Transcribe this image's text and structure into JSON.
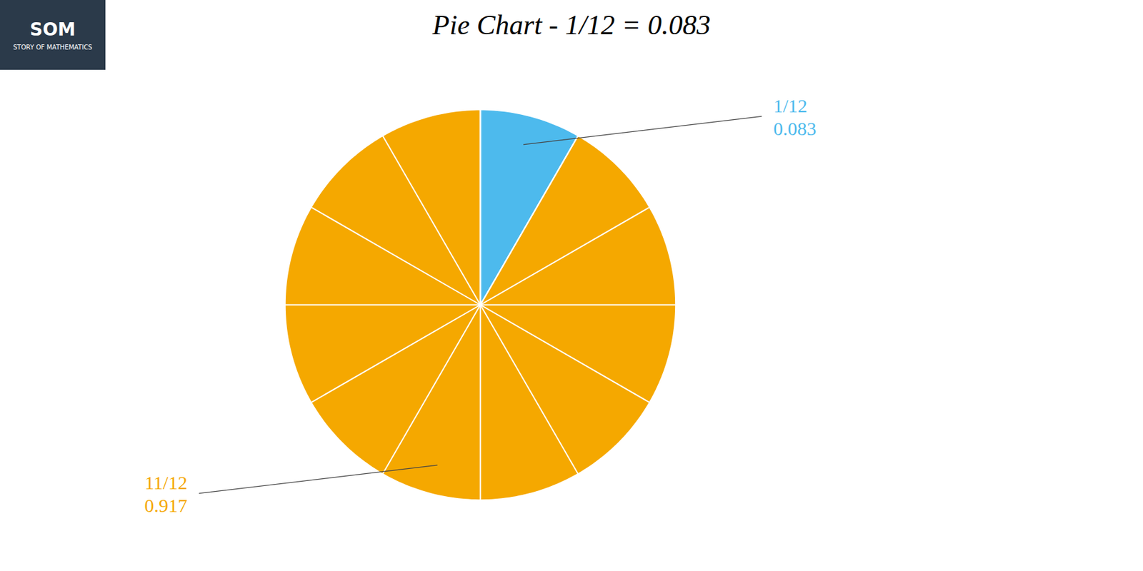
{
  "chart_data": {
    "type": "pie",
    "title": "Pie Chart - 1/12 = 0.083",
    "categories": [
      "1/12",
      "11/12"
    ],
    "values": [
      0.08333,
      0.91667
    ],
    "value_labels": [
      "0.083",
      "0.917"
    ],
    "colors": [
      "#4DBAED",
      "#F5A800"
    ],
    "data_labels": true,
    "equal_parts": 12,
    "annotations": [
      "SOM",
      "STORY OF MATHEMATICS"
    ]
  }
}
